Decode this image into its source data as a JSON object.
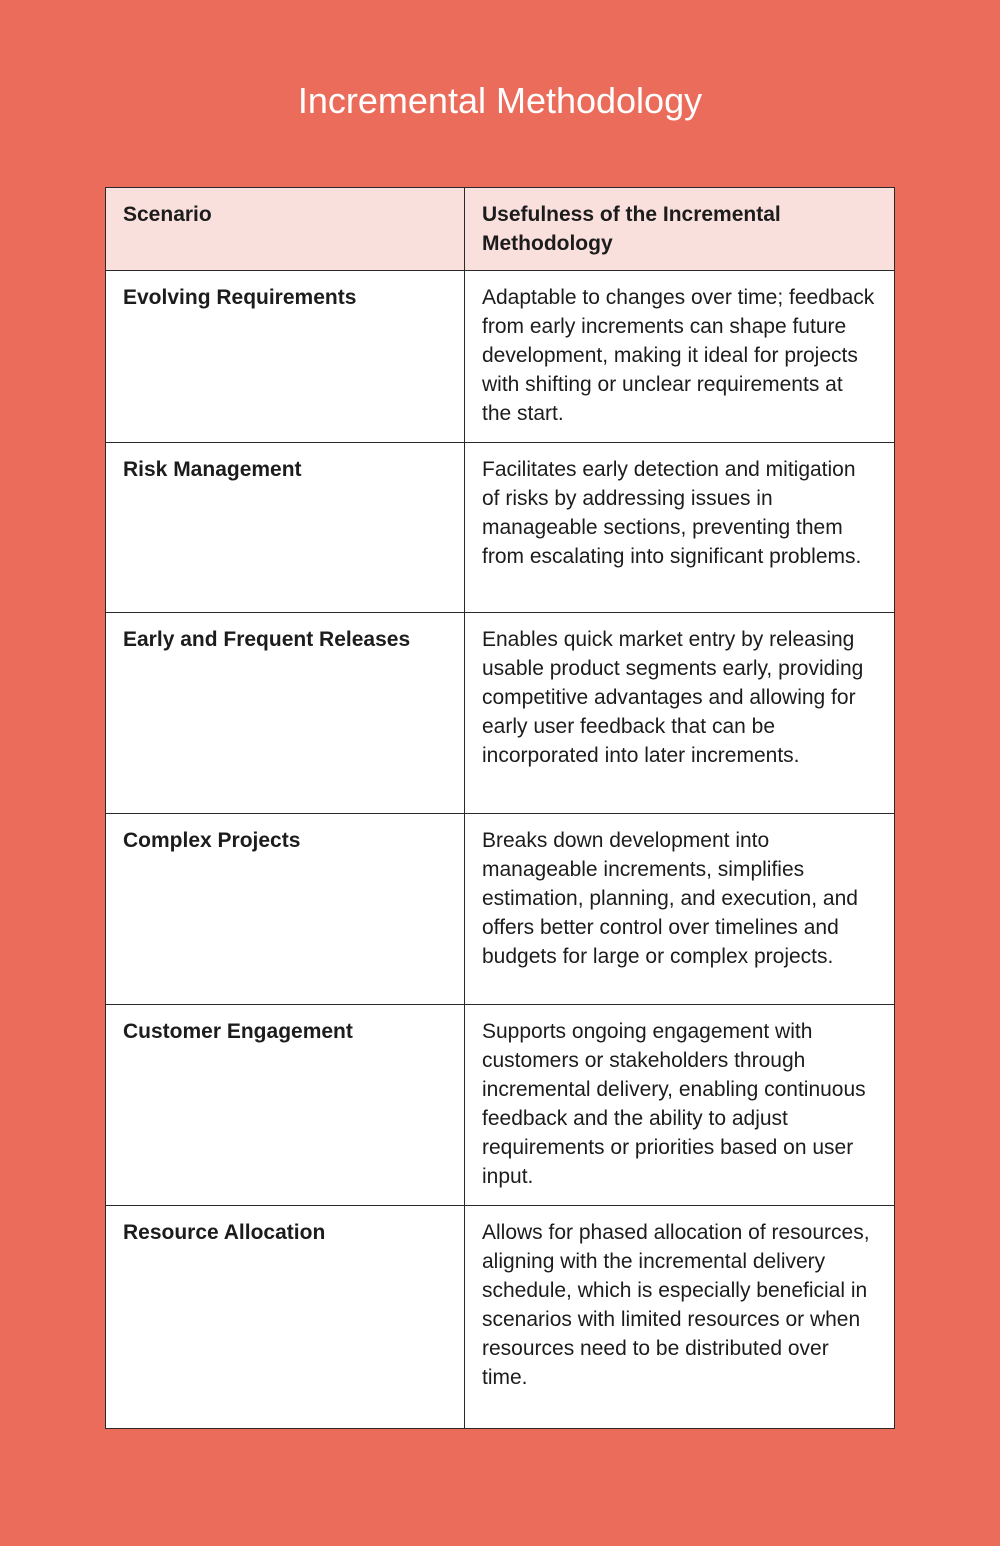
{
  "title": "Incremental Methodology",
  "colors": {
    "background": "#ec6c5c",
    "header_row": "#f9e0dc",
    "table_body": "#ffffff"
  },
  "table": {
    "headers": [
      "Scenario",
      "Usefulness of the Incremental Methodology"
    ],
    "rows": [
      {
        "scenario": "Evolving Requirements",
        "usefulness": "Adaptable to changes over time; feedback from early increments can shape future development, making it ideal for projects with shifting or unclear requirements at the start."
      },
      {
        "scenario": "Risk Management",
        "usefulness": "Facilitates early detection and mitigation of risks by addressing issues in manageable sections, preventing them from escalating into significant problems."
      },
      {
        "scenario": "Early and Frequent Releases",
        "usefulness": "Enables quick market entry by releasing usable product segments early, providing competitive advantages and allowing for early user feedback that can be incorporated into later increments."
      },
      {
        "scenario": "Complex Projects",
        "usefulness": "Breaks down development into manageable increments, simplifies estimation, planning, and execution, and offers better control over timelines and budgets for large or complex projects."
      },
      {
        "scenario": "Customer Engagement",
        "usefulness": "Supports ongoing engagement with customers or stakeholders through incremental delivery, enabling continuous feedback and the ability to adjust requirements or priorities based on user input."
      },
      {
        "scenario": "Resource Allocation",
        "usefulness": "Allows for phased allocation of resources, aligning with the incremental delivery schedule, which is especially beneficial in scenarios with limited resources or when resources need to be distributed over time."
      }
    ]
  }
}
